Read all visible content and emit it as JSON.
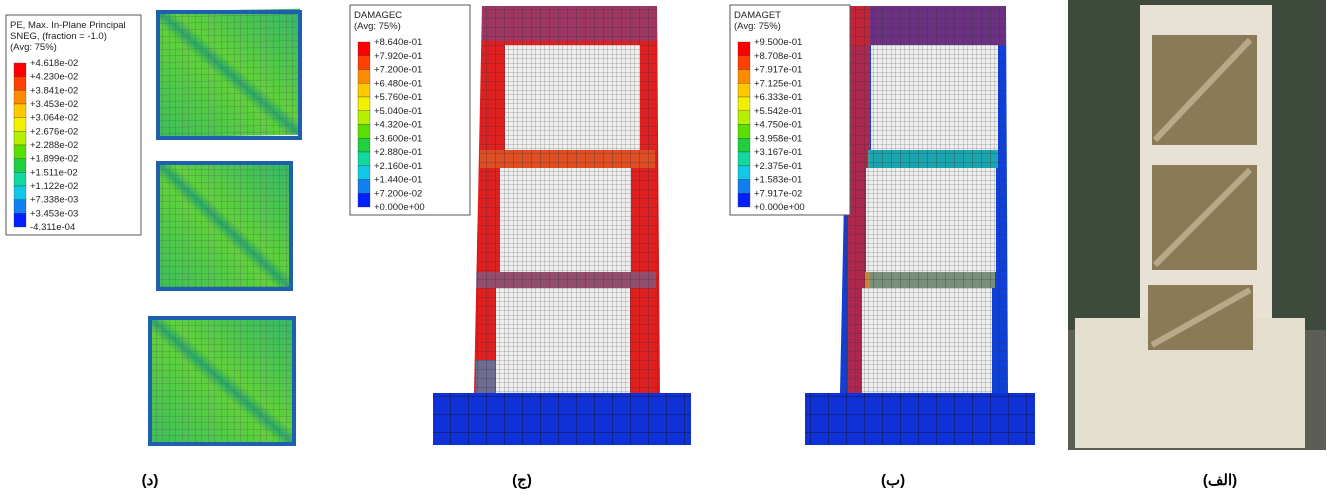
{
  "panels": [
    {
      "legend": {
        "title_lines": [
          "PE, Max. In-Plane Principal",
          "SNEG, (fraction = -1.0)",
          "(Avg: 75%)"
        ],
        "labels": [
          "+4.618e-02",
          "+4.230e-02",
          "+3.841e-02",
          "+3.453e-02",
          "+3.064e-02",
          "+2.676e-02",
          "+2.288e-02",
          "+1.899e-02",
          "+1.511e-02",
          "+1.122e-02",
          "+7.338e-03",
          "+3.453e-03",
          "-4.311e-04"
        ]
      },
      "caption": "(د)"
    },
    {
      "legend": {
        "title_lines": [
          "DAMAGEC",
          "(Avg: 75%)"
        ],
        "labels": [
          "+8.640e-01",
          "+7.920e-01",
          "+7.200e-01",
          "+6.480e-01",
          "+5.760e-01",
          "+5.040e-01",
          "+4.320e-01",
          "+3.600e-01",
          "+2.880e-01",
          "+2.160e-01",
          "+1.440e-01",
          "+7.200e-02",
          "+0.000e+00"
        ]
      },
      "caption": "(ج)"
    },
    {
      "legend": {
        "title_lines": [
          "DAMAGET",
          "(Avg: 75%)"
        ],
        "labels": [
          "+9.500e-01",
          "+8.708e-01",
          "+7.917e-01",
          "+7.125e-01",
          "+6.333e-01",
          "+5.542e-01",
          "+4.750e-01",
          "+3.958e-01",
          "+3.167e-01",
          "+2.375e-01",
          "+1.583e-01",
          "+7.917e-02",
          "+0.000e+00"
        ]
      },
      "caption": "(ب)"
    },
    {
      "caption": "(الف)"
    }
  ]
}
